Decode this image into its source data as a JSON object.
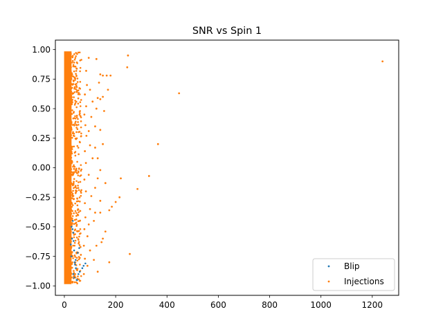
{
  "chart_data": {
    "type": "scatter",
    "title": "SNR vs Spin 1",
    "xlabel": "",
    "ylabel": "",
    "xlim": [
      -35,
      1303
    ],
    "ylim": [
      -1.08,
      1.08
    ],
    "x_ticks": [
      0,
      200,
      400,
      600,
      800,
      1000,
      1200
    ],
    "x_tick_labels": [
      "0",
      "200",
      "400",
      "600",
      "800",
      "1000",
      "1200"
    ],
    "y_ticks": [
      1.0,
      0.75,
      0.5,
      0.25,
      0.0,
      -0.25,
      -0.5,
      -0.75,
      -1.0
    ],
    "y_tick_labels": [
      "1.00",
      "0.75",
      "0.50",
      "0.25",
      "0.00",
      "−0.25",
      "−0.50",
      "−0.75",
      "−1.00"
    ],
    "grid": false,
    "legend_position": "lower-right",
    "series": [
      {
        "name": "Blip",
        "color": "#1f77b4",
        "points": [
          [
            28,
            -0.5
          ],
          [
            32,
            -0.52
          ],
          [
            35,
            -0.55
          ],
          [
            30,
            -0.6
          ],
          [
            25,
            -0.65
          ],
          [
            38,
            -0.7
          ],
          [
            40,
            -0.8
          ],
          [
            42,
            -0.82
          ],
          [
            45,
            -0.85
          ],
          [
            35,
            -0.9
          ],
          [
            38,
            -0.93
          ],
          [
            48,
            -0.95
          ],
          [
            50,
            -0.95
          ],
          [
            55,
            -0.9
          ],
          [
            60,
            -0.88
          ],
          [
            70,
            -0.85
          ],
          [
            75,
            -0.83
          ],
          [
            82,
            -0.81
          ],
          [
            33,
            -0.45
          ],
          [
            27,
            -0.75
          ],
          [
            44,
            -0.78
          ],
          [
            52,
            -0.72
          ],
          [
            58,
            -0.68
          ],
          [
            36,
            -0.62
          ]
        ]
      },
      {
        "name": "Injections",
        "color": "#ff7f0e",
        "points": [
          [
            1240,
            0.9
          ],
          [
            447,
            0.63
          ],
          [
            365,
            0.2
          ],
          [
            248,
            0.95
          ],
          [
            245,
            0.85
          ],
          [
            330,
            -0.07
          ],
          [
            285,
            -0.18
          ],
          [
            220,
            -0.09
          ],
          [
            215,
            -0.25
          ],
          [
            255,
            -0.73
          ],
          [
            200,
            -0.29
          ],
          [
            185,
            -0.33
          ],
          [
            175,
            -0.36
          ],
          [
            160,
            -0.13
          ],
          [
            140,
            -0.28
          ],
          [
            150,
            -0.6
          ],
          [
            160,
            -0.54
          ],
          [
            145,
            -0.63
          ],
          [
            130,
            -0.88
          ],
          [
            175,
            -0.8
          ],
          [
            180,
            0.78
          ],
          [
            165,
            0.78
          ],
          [
            150,
            0.78
          ],
          [
            140,
            0.79
          ],
          [
            125,
            0.92
          ],
          [
            170,
            0.66
          ],
          [
            135,
            0.72
          ],
          [
            150,
            0.6
          ],
          [
            140,
            0.58
          ],
          [
            130,
            0.59
          ],
          [
            125,
            0.5
          ],
          [
            155,
            0.48
          ],
          [
            120,
            0.35
          ],
          [
            140,
            0.32
          ],
          [
            150,
            0.2
          ],
          [
            120,
            0.17
          ],
          [
            130,
            0.08
          ],
          [
            140,
            -0.02
          ],
          [
            130,
            -0.09
          ],
          [
            120,
            -0.17
          ],
          [
            120,
            -0.38
          ],
          [
            140,
            -0.38
          ],
          [
            115,
            -0.45
          ],
          [
            125,
            -0.66
          ],
          [
            115,
            -0.78
          ],
          [
            100,
            0.66
          ],
          [
            110,
            0.56
          ],
          [
            105,
            0.43
          ],
          [
            95,
            0.31
          ],
          [
            100,
            0.19
          ],
          [
            110,
            0.08
          ],
          [
            95,
            -0.06
          ],
          [
            105,
            -0.24
          ],
          [
            100,
            -0.35
          ],
          [
            95,
            -0.48
          ],
          [
            90,
            -0.58
          ],
          [
            100,
            -0.7
          ],
          [
            90,
            -0.83
          ],
          [
            95,
            0.93
          ],
          [
            85,
            0.82
          ],
          [
            88,
            0.7
          ],
          [
            80,
            0.62
          ],
          [
            85,
            0.52
          ],
          [
            78,
            0.45
          ],
          [
            82,
            0.36
          ],
          [
            86,
            0.27
          ],
          [
            80,
            0.14
          ],
          [
            84,
            0.04
          ],
          [
            78,
            -0.1
          ],
          [
            84,
            -0.2
          ],
          [
            80,
            -0.3
          ],
          [
            82,
            -0.42
          ],
          [
            78,
            -0.52
          ],
          [
            76,
            -0.66
          ],
          [
            80,
            -0.77
          ],
          [
            76,
            -0.9
          ]
        ]
      }
    ]
  }
}
